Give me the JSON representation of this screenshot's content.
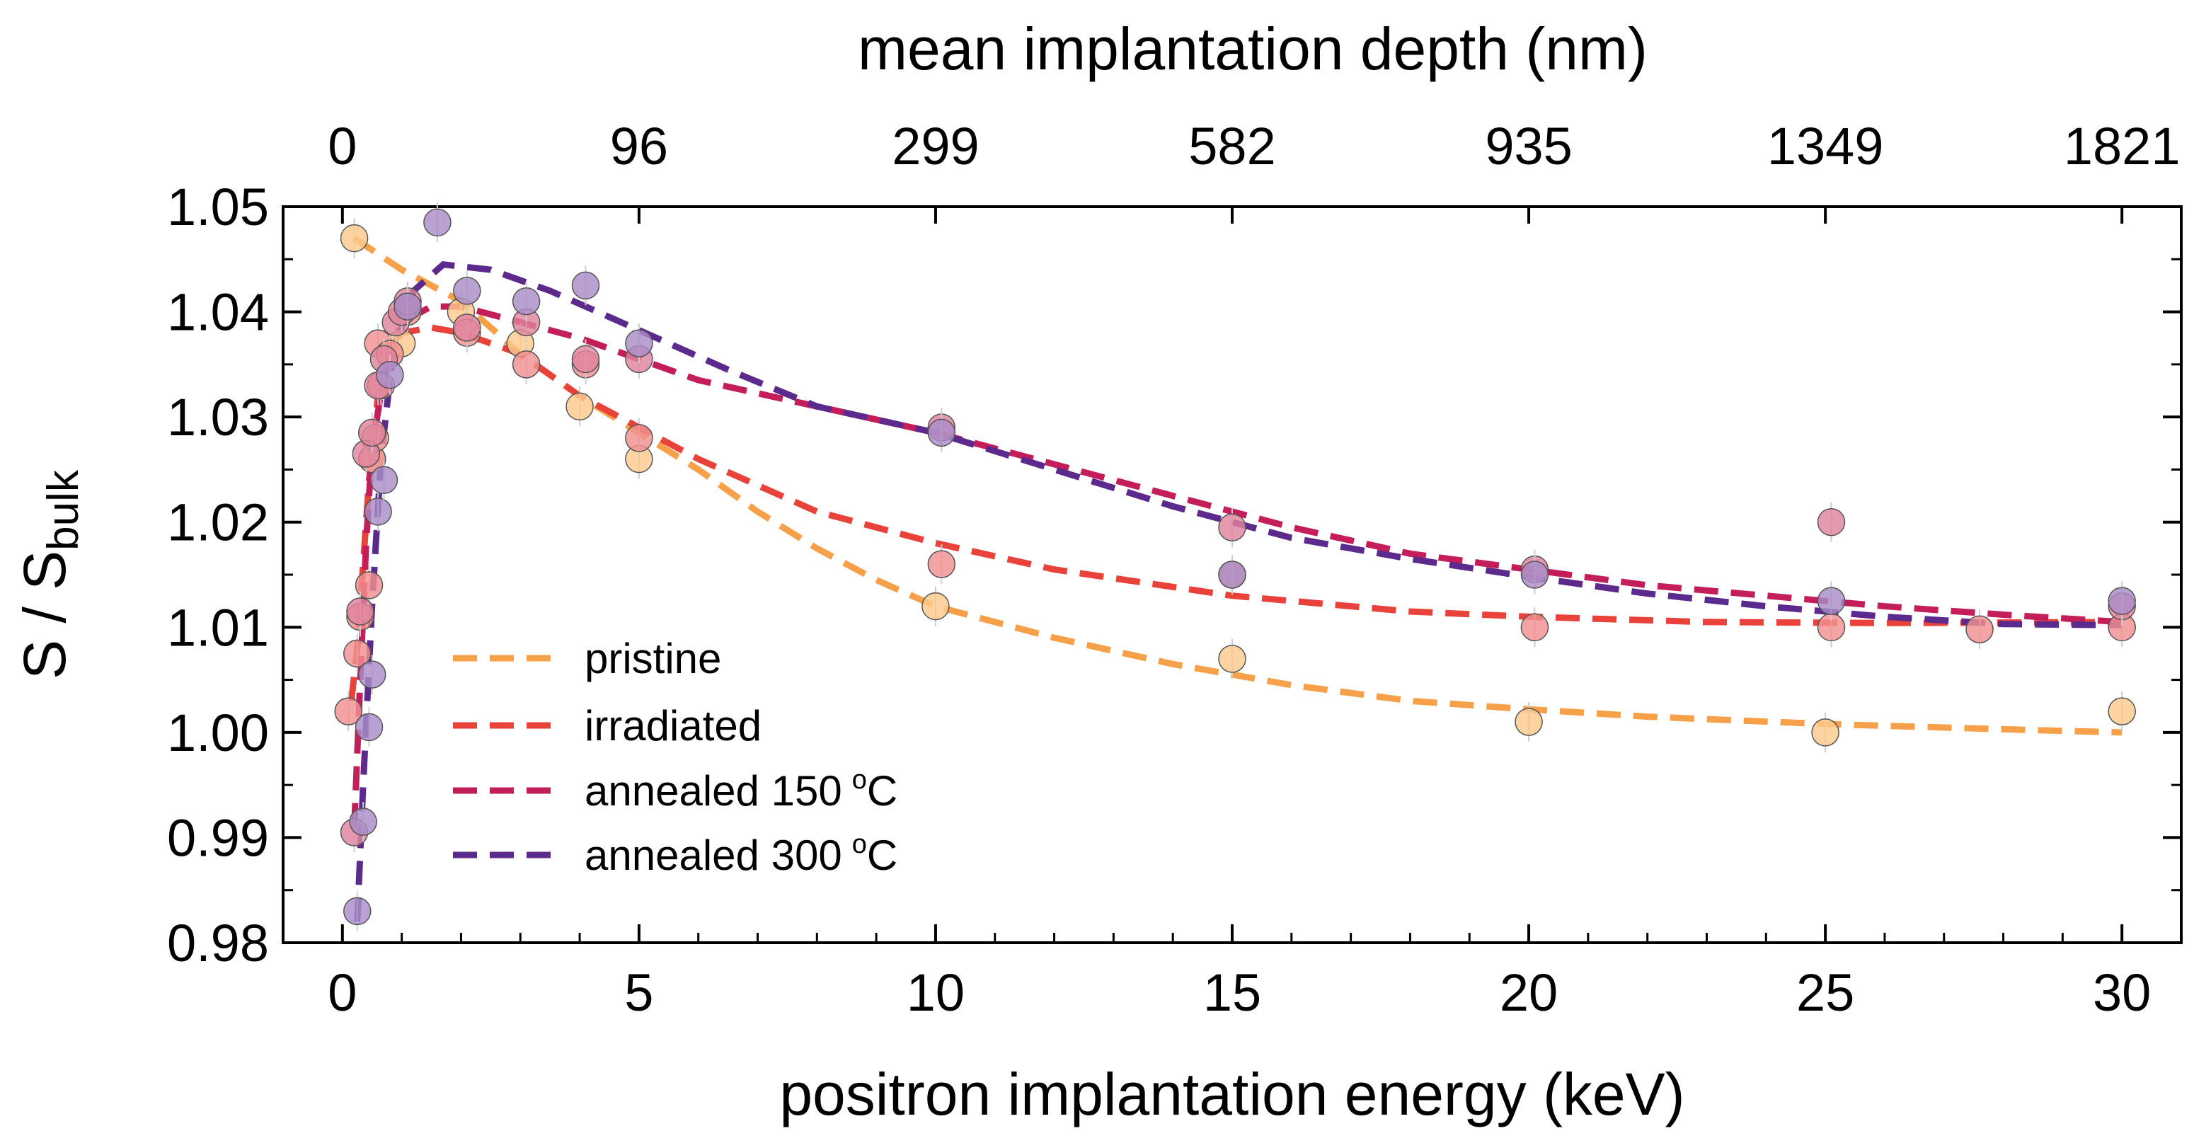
{
  "chart_data": {
    "type": "scatter",
    "xlabel": "positron implantation energy (keV)",
    "ylabel_main": "S / S",
    "ylabel_sub": "bulk",
    "top_axis_label": "mean implantation depth (nm)",
    "xlim": [
      -1,
      31
    ],
    "ylim": [
      0.98,
      1.05
    ],
    "x_ticks": [
      "0",
      "5",
      "10",
      "15",
      "20",
      "25",
      "30"
    ],
    "x_tick_values": [
      0,
      5,
      10,
      15,
      20,
      25,
      30
    ],
    "y_ticks": [
      "0.98",
      "0.99",
      "1.00",
      "1.01",
      "1.02",
      "1.03",
      "1.04",
      "1.05"
    ],
    "y_tick_values": [
      0.98,
      0.99,
      1.0,
      1.01,
      1.02,
      1.03,
      1.04,
      1.05
    ],
    "top_ticks": [
      "0",
      "96",
      "299",
      "582",
      "935",
      "1349",
      "1821"
    ],
    "top_tick_energies": [
      0,
      5,
      10,
      15,
      20,
      25,
      30
    ],
    "legend_position": "lower-left",
    "series": [
      {
        "name": "pristine",
        "color": "#F7A04A",
        "marker_color": "#FCC98C",
        "points": [
          [
            0.2,
            1.047
          ],
          [
            0.5,
            1.026
          ],
          [
            1.0,
            1.037
          ],
          [
            2.0,
            1.04
          ],
          [
            3.0,
            1.037
          ],
          [
            4.0,
            1.031
          ],
          [
            5.0,
            1.026
          ],
          [
            10.0,
            1.012
          ],
          [
            15.0,
            1.007
          ],
          [
            20.0,
            1.001
          ],
          [
            25.0,
            1.0
          ],
          [
            30.0,
            1.002
          ]
        ],
        "fit": [
          [
            0.2,
            1.047
          ],
          [
            1.0,
            1.044
          ],
          [
            2.0,
            1.041
          ],
          [
            3.0,
            1.036
          ],
          [
            4.0,
            1.032
          ],
          [
            5.0,
            1.0285
          ],
          [
            6.0,
            1.025
          ],
          [
            7.0,
            1.021
          ],
          [
            8.0,
            1.0175
          ],
          [
            9.0,
            1.0145
          ],
          [
            10.0,
            1.012
          ],
          [
            12.0,
            1.009
          ],
          [
            14.0,
            1.0065
          ],
          [
            16.0,
            1.0045
          ],
          [
            18.0,
            1.003
          ],
          [
            20.0,
            1.0022
          ],
          [
            22.0,
            1.0015
          ],
          [
            25.0,
            1.0008
          ],
          [
            28.0,
            1.0003
          ],
          [
            30.0,
            1.0
          ]
        ]
      },
      {
        "name": "irradiated",
        "color": "#E8423A",
        "marker_color": "#F19090",
        "points": [
          [
            0.1,
            1.002
          ],
          [
            0.25,
            1.0075
          ],
          [
            0.3,
            1.011
          ],
          [
            0.45,
            1.014
          ],
          [
            0.5,
            1.026
          ],
          [
            0.55,
            1.028
          ],
          [
            0.6,
            1.037
          ],
          [
            0.65,
            1.033
          ],
          [
            0.8,
            1.036
          ],
          [
            1.1,
            1.04
          ],
          [
            2.1,
            1.038
          ],
          [
            3.1,
            1.035
          ],
          [
            4.1,
            1.035
          ],
          [
            5.0,
            1.028
          ],
          [
            10.1,
            1.016
          ],
          [
            15.0,
            1.015
          ],
          [
            20.1,
            1.01
          ],
          [
            25.1,
            1.01
          ],
          [
            27.6,
            1.0098
          ],
          [
            30.0,
            1.01
          ]
        ],
        "fit": [
          [
            0.15,
            1.003
          ],
          [
            0.25,
            1.008
          ],
          [
            0.35,
            1.016
          ],
          [
            0.45,
            1.024
          ],
          [
            0.6,
            1.032
          ],
          [
            0.8,
            1.036
          ],
          [
            1.0,
            1.038
          ],
          [
            1.5,
            1.0385
          ],
          [
            2.0,
            1.038
          ],
          [
            3.0,
            1.036
          ],
          [
            4.0,
            1.032
          ],
          [
            5.0,
            1.029
          ],
          [
            6.0,
            1.026
          ],
          [
            7.0,
            1.0235
          ],
          [
            8.0,
            1.021
          ],
          [
            10.0,
            1.018
          ],
          [
            12.0,
            1.0155
          ],
          [
            15.0,
            1.013
          ],
          [
            18.0,
            1.0115
          ],
          [
            20.0,
            1.011
          ],
          [
            23.0,
            1.0105
          ],
          [
            26.0,
            1.0104
          ],
          [
            30.0,
            1.0105
          ]
        ]
      },
      {
        "name": "annealed 150 °C",
        "label_text": "annealed 150",
        "label_unit": "C",
        "color": "#C41E5A",
        "marker_color": "#E0849E",
        "points": [
          [
            0.2,
            0.9905
          ],
          [
            0.3,
            1.0115
          ],
          [
            0.4,
            1.0265
          ],
          [
            0.5,
            1.0285
          ],
          [
            0.6,
            1.033
          ],
          [
            0.7,
            1.0355
          ],
          [
            0.9,
            1.039
          ],
          [
            1.0,
            1.04
          ],
          [
            1.1,
            1.041
          ],
          [
            2.1,
            1.0385
          ],
          [
            3.1,
            1.039
          ],
          [
            4.1,
            1.0355
          ],
          [
            5.0,
            1.0355
          ],
          [
            10.1,
            1.029
          ],
          [
            15.0,
            1.0195
          ],
          [
            20.1,
            1.0155
          ],
          [
            25.1,
            1.02
          ],
          [
            30.0,
            1.012
          ]
        ],
        "fit": [
          [
            0.2,
            0.991
          ],
          [
            0.3,
            1.005
          ],
          [
            0.4,
            1.018
          ],
          [
            0.5,
            1.027
          ],
          [
            0.7,
            1.034
          ],
          [
            1.0,
            1.039
          ],
          [
            1.5,
            1.0405
          ],
          [
            2.0,
            1.0405
          ],
          [
            3.0,
            1.039
          ],
          [
            4.0,
            1.0375
          ],
          [
            5.0,
            1.0355
          ],
          [
            6.0,
            1.0335
          ],
          [
            8.0,
            1.031
          ],
          [
            10.0,
            1.0285
          ],
          [
            12.0,
            1.0255
          ],
          [
            14.0,
            1.0225
          ],
          [
            16.0,
            1.0195
          ],
          [
            18.0,
            1.017
          ],
          [
            20.0,
            1.0155
          ],
          [
            22.0,
            1.014
          ],
          [
            24.0,
            1.013
          ],
          [
            26.0,
            1.012
          ],
          [
            28.0,
            1.0112
          ],
          [
            30.0,
            1.0105
          ]
        ]
      },
      {
        "name": "annealed 300 °C",
        "label_text": "annealed 300",
        "label_unit": "C",
        "color": "#5B2A8C",
        "marker_color": "#A98CC8",
        "points": [
          [
            0.25,
            0.983
          ],
          [
            0.35,
            0.9915
          ],
          [
            0.45,
            1.0005
          ],
          [
            0.5,
            1.0055
          ],
          [
            0.6,
            1.021
          ],
          [
            0.7,
            1.024
          ],
          [
            0.8,
            1.034
          ],
          [
            1.1,
            1.0405
          ],
          [
            1.6,
            1.0485
          ],
          [
            2.1,
            1.042
          ],
          [
            3.1,
            1.041
          ],
          [
            4.1,
            1.0425
          ],
          [
            5.0,
            1.037
          ],
          [
            10.1,
            1.0285
          ],
          [
            15.0,
            1.015
          ],
          [
            20.1,
            1.015
          ],
          [
            25.1,
            1.0125
          ],
          [
            30.0,
            1.0125
          ]
        ],
        "fit": [
          [
            0.25,
            0.982
          ],
          [
            0.35,
            0.995
          ],
          [
            0.5,
            1.012
          ],
          [
            0.65,
            1.026
          ],
          [
            0.85,
            1.036
          ],
          [
            1.2,
            1.042
          ],
          [
            1.7,
            1.0445
          ],
          [
            2.5,
            1.044
          ],
          [
            3.5,
            1.042
          ],
          [
            4.5,
            1.0395
          ],
          [
            5.5,
            1.037
          ],
          [
            6.5,
            1.0345
          ],
          [
            8.0,
            1.031
          ],
          [
            10.0,
            1.0285
          ],
          [
            12.0,
            1.025
          ],
          [
            14.0,
            1.0215
          ],
          [
            16.0,
            1.0185
          ],
          [
            18.0,
            1.0165
          ],
          [
            20.0,
            1.0148
          ],
          [
            22.0,
            1.0132
          ],
          [
            24.0,
            1.012
          ],
          [
            26.0,
            1.011
          ],
          [
            28.0,
            1.0103
          ],
          [
            30.0,
            1.0102
          ]
        ]
      }
    ]
  }
}
